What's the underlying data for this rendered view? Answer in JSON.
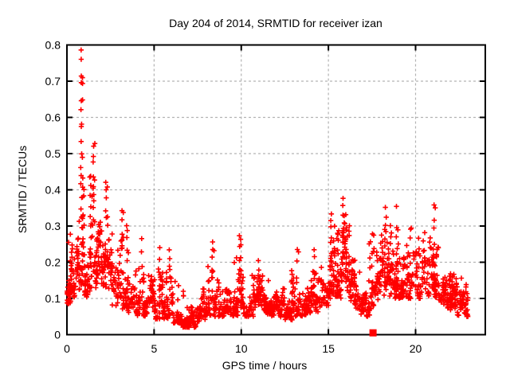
{
  "chart_data": {
    "type": "scatter",
    "title": "Day 204 of 2014, SRMTID for receiver izan",
    "xlabel": "GPS time / hours",
    "ylabel": "SRMTID / TECUs",
    "xlim": [
      0,
      24
    ],
    "ylim": [
      0,
      0.8
    ],
    "xticks": [
      {
        "v": 0,
        "label": "0"
      },
      {
        "v": 5,
        "label": "5"
      },
      {
        "v": 10,
        "label": "10"
      },
      {
        "v": 15,
        "label": "15"
      },
      {
        "v": 20,
        "label": "20"
      }
    ],
    "yticks": [
      {
        "v": 0.0,
        "label": "0"
      },
      {
        "v": 0.1,
        "label": "0.1"
      },
      {
        "v": 0.2,
        "label": "0.2"
      },
      {
        "v": 0.3,
        "label": "0.3"
      },
      {
        "v": 0.4,
        "label": "0.4"
      },
      {
        "v": 0.5,
        "label": "0.5"
      },
      {
        "v": 0.6,
        "label": "0.6"
      },
      {
        "v": 0.7,
        "label": "0.7"
      },
      {
        "v": 0.8,
        "label": "0.8"
      }
    ],
    "grid": true,
    "legend": "none",
    "colors": {
      "marker": "#ff0000",
      "grid": "#b3b3b3",
      "frame": "#000000",
      "background": "#ffffff"
    },
    "marker": {
      "shape": "plus",
      "size": 7,
      "stroke": 1.6
    },
    "seed": 20414,
    "series_name": "SRMTID",
    "envelope_bins": [
      [
        0.0,
        0.3,
        0.08,
        0.31,
        42
      ],
      [
        0.3,
        0.6,
        0.1,
        0.26,
        30
      ],
      [
        0.6,
        0.9,
        0.12,
        0.32,
        34
      ],
      [
        0.9,
        1.2,
        0.1,
        0.4,
        34
      ],
      [
        1.2,
        1.5,
        0.12,
        0.44,
        34
      ],
      [
        1.5,
        1.8,
        0.12,
        0.42,
        34
      ],
      [
        1.8,
        2.1,
        0.1,
        0.36,
        32
      ],
      [
        2.1,
        2.4,
        0.09,
        0.33,
        32
      ],
      [
        2.4,
        2.7,
        0.08,
        0.28,
        28
      ],
      [
        2.7,
        3.0,
        0.08,
        0.24,
        26
      ],
      [
        3.0,
        3.3,
        0.07,
        0.3,
        28
      ],
      [
        3.3,
        3.6,
        0.06,
        0.32,
        28
      ],
      [
        3.6,
        3.9,
        0.06,
        0.22,
        26
      ],
      [
        3.9,
        4.2,
        0.05,
        0.2,
        26
      ],
      [
        4.2,
        4.5,
        0.05,
        0.22,
        26
      ],
      [
        4.5,
        4.8,
        0.05,
        0.18,
        26
      ],
      [
        4.8,
        5.1,
        0.05,
        0.2,
        26
      ],
      [
        5.1,
        5.4,
        0.04,
        0.21,
        26
      ],
      [
        5.4,
        5.7,
        0.04,
        0.18,
        26
      ],
      [
        5.7,
        6.0,
        0.04,
        0.22,
        26
      ],
      [
        6.0,
        6.3,
        0.03,
        0.16,
        26
      ],
      [
        6.3,
        6.6,
        0.03,
        0.14,
        26
      ],
      [
        6.6,
        6.9,
        0.02,
        0.12,
        26
      ],
      [
        6.9,
        7.2,
        0.02,
        0.09,
        24
      ],
      [
        7.2,
        7.5,
        0.02,
        0.08,
        24
      ],
      [
        7.5,
        7.8,
        0.03,
        0.11,
        24
      ],
      [
        7.8,
        8.1,
        0.04,
        0.13,
        24
      ],
      [
        8.1,
        8.4,
        0.04,
        0.2,
        26
      ],
      [
        8.4,
        8.7,
        0.04,
        0.16,
        26
      ],
      [
        8.7,
        9.0,
        0.05,
        0.14,
        24
      ],
      [
        9.0,
        9.3,
        0.05,
        0.16,
        26
      ],
      [
        9.3,
        9.6,
        0.05,
        0.2,
        26
      ],
      [
        9.6,
        9.9,
        0.05,
        0.26,
        28
      ],
      [
        9.9,
        10.2,
        0.05,
        0.18,
        26
      ],
      [
        10.2,
        10.5,
        0.05,
        0.16,
        26
      ],
      [
        10.5,
        10.8,
        0.05,
        0.18,
        26
      ],
      [
        10.8,
        11.1,
        0.06,
        0.2,
        28
      ],
      [
        11.1,
        11.4,
        0.06,
        0.18,
        28
      ],
      [
        11.4,
        11.7,
        0.05,
        0.16,
        26
      ],
      [
        11.7,
        12.0,
        0.05,
        0.17,
        26
      ],
      [
        12.0,
        12.3,
        0.04,
        0.15,
        26
      ],
      [
        12.3,
        12.6,
        0.04,
        0.14,
        26
      ],
      [
        12.6,
        12.9,
        0.04,
        0.15,
        26
      ],
      [
        12.9,
        13.2,
        0.05,
        0.2,
        26
      ],
      [
        13.2,
        13.5,
        0.05,
        0.18,
        26
      ],
      [
        13.5,
        13.8,
        0.05,
        0.16,
        26
      ],
      [
        13.8,
        14.1,
        0.06,
        0.2,
        26
      ],
      [
        14.1,
        14.4,
        0.06,
        0.24,
        28
      ],
      [
        14.4,
        14.7,
        0.07,
        0.2,
        26
      ],
      [
        14.7,
        15.0,
        0.08,
        0.24,
        28
      ],
      [
        15.0,
        15.3,
        0.1,
        0.33,
        30
      ],
      [
        15.3,
        15.6,
        0.1,
        0.3,
        30
      ],
      [
        15.6,
        15.9,
        0.1,
        0.36,
        30
      ],
      [
        15.9,
        16.2,
        0.08,
        0.34,
        30
      ],
      [
        16.2,
        16.5,
        0.07,
        0.24,
        26
      ],
      [
        16.5,
        16.8,
        0.05,
        0.18,
        24
      ],
      [
        16.8,
        17.1,
        0.05,
        0.15,
        24
      ],
      [
        17.1,
        17.4,
        0.05,
        0.2,
        24
      ],
      [
        17.4,
        17.7,
        0.07,
        0.28,
        26
      ],
      [
        17.7,
        18.0,
        0.09,
        0.3,
        28
      ],
      [
        18.0,
        18.3,
        0.1,
        0.35,
        30
      ],
      [
        18.3,
        18.6,
        0.1,
        0.33,
        30
      ],
      [
        18.6,
        18.9,
        0.1,
        0.3,
        28
      ],
      [
        18.9,
        19.2,
        0.1,
        0.26,
        28
      ],
      [
        19.2,
        19.5,
        0.1,
        0.25,
        28
      ],
      [
        19.5,
        19.8,
        0.1,
        0.3,
        28
      ],
      [
        19.8,
        20.1,
        0.1,
        0.28,
        28
      ],
      [
        20.1,
        20.4,
        0.1,
        0.26,
        28
      ],
      [
        20.4,
        20.7,
        0.1,
        0.28,
        28
      ],
      [
        20.7,
        21.0,
        0.1,
        0.3,
        28
      ],
      [
        21.0,
        21.3,
        0.1,
        0.32,
        28
      ],
      [
        21.3,
        21.6,
        0.08,
        0.24,
        26
      ],
      [
        21.6,
        21.9,
        0.07,
        0.2,
        26
      ],
      [
        21.9,
        22.2,
        0.06,
        0.18,
        26
      ],
      [
        22.2,
        22.5,
        0.05,
        0.17,
        26
      ],
      [
        22.5,
        22.8,
        0.05,
        0.16,
        26
      ],
      [
        22.8,
        23.0,
        0.05,
        0.14,
        18
      ]
    ],
    "spike_columns": [
      [
        0.82,
        0.3,
        0.8,
        16
      ],
      [
        0.88,
        0.2,
        0.5,
        8
      ],
      [
        1.35,
        0.3,
        0.45,
        6
      ],
      [
        1.52,
        0.35,
        0.54,
        7
      ],
      [
        2.25,
        0.3,
        0.44,
        5
      ],
      [
        3.15,
        0.22,
        0.35,
        5
      ],
      [
        3.45,
        0.2,
        0.32,
        5
      ],
      [
        4.3,
        0.15,
        0.27,
        4
      ],
      [
        5.3,
        0.12,
        0.25,
        4
      ],
      [
        5.9,
        0.12,
        0.25,
        5
      ],
      [
        8.35,
        0.12,
        0.28,
        6
      ],
      [
        9.9,
        0.12,
        0.28,
        6
      ],
      [
        11.0,
        0.12,
        0.22,
        4
      ],
      [
        13.2,
        0.12,
        0.25,
        4
      ],
      [
        14.2,
        0.12,
        0.25,
        5
      ],
      [
        15.15,
        0.2,
        0.35,
        7
      ],
      [
        15.55,
        0.18,
        0.3,
        5
      ],
      [
        15.85,
        0.2,
        0.385,
        8
      ],
      [
        16.0,
        0.15,
        0.3,
        5
      ],
      [
        17.35,
        0.12,
        0.28,
        4
      ],
      [
        17.5,
        0.1,
        0.29,
        5
      ],
      [
        18.25,
        0.15,
        0.36,
        7
      ],
      [
        18.55,
        0.15,
        0.33,
        5
      ],
      [
        18.9,
        0.15,
        0.36,
        6
      ],
      [
        19.7,
        0.15,
        0.32,
        5
      ],
      [
        20.2,
        0.12,
        0.3,
        4
      ],
      [
        20.5,
        0.15,
        0.3,
        4
      ],
      [
        21.05,
        0.15,
        0.37,
        7
      ],
      [
        22.9,
        0.05,
        0.15,
        5
      ]
    ],
    "special_points": [
      {
        "x": 17.56,
        "y": 0.005,
        "marker": "filled-square",
        "size": 9,
        "color": "#ff0000"
      }
    ]
  }
}
